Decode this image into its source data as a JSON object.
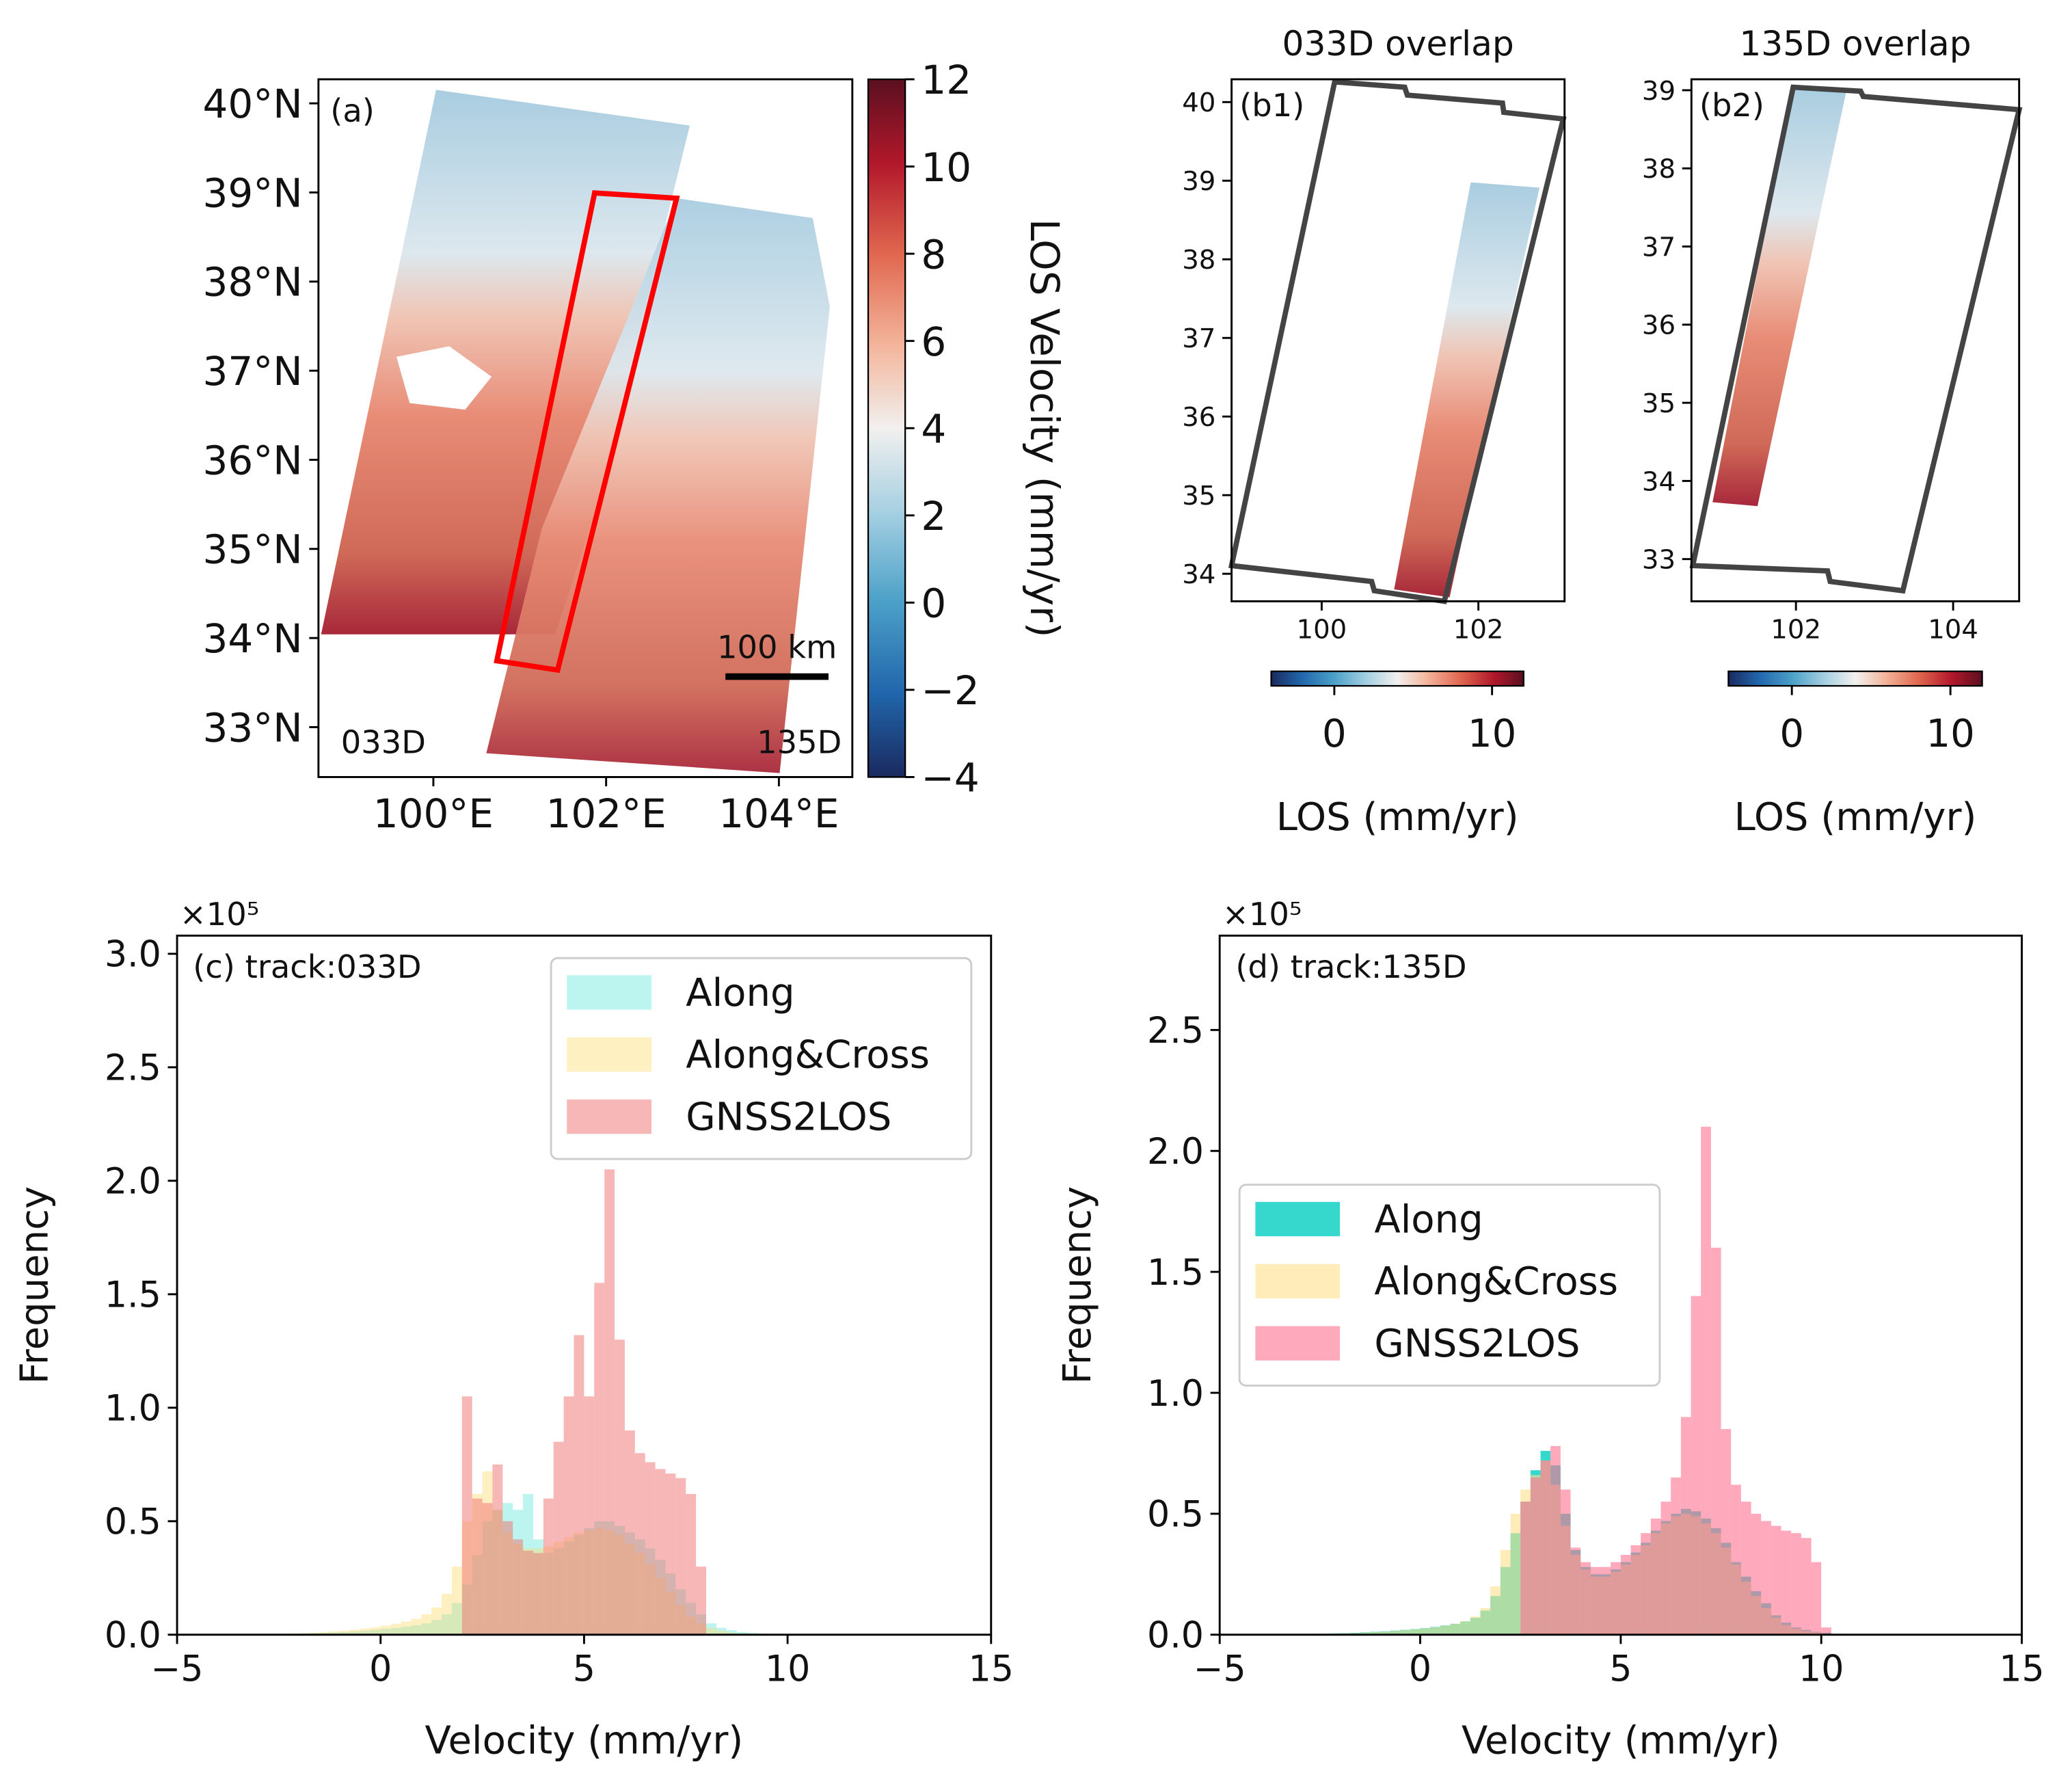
{
  "chart_data": [
    {
      "type": "map",
      "annotations": [
        "(a)",
        "033D",
        "135D",
        "100 km"
      ],
      "xlim": [
        98.67,
        104.85
      ],
      "xticks": [
        {
          "value": 100,
          "label": "100°E"
        },
        {
          "value": 102,
          "label": "102°E"
        },
        {
          "value": 104,
          "label": "104°E"
        }
      ],
      "ylim": [
        32.44,
        40.27
      ],
      "yticks": [
        {
          "value": 33,
          "label": "33°N"
        },
        {
          "value": 34,
          "label": "34°N"
        },
        {
          "value": 35,
          "label": "35°N"
        },
        {
          "value": 36,
          "label": "36°N"
        },
        {
          "value": 37,
          "label": "37°N"
        },
        {
          "value": 38,
          "label": "38°N"
        },
        {
          "value": 39,
          "label": "39°N"
        },
        {
          "value": 40,
          "label": "40°N"
        }
      ],
      "colorbar": {
        "label": "LOS Velocity (mm/yr)",
        "orientation": "vertical",
        "lim": [
          -4,
          12
        ],
        "ticks": [
          {
            "value": -4,
            "label": "−4"
          },
          {
            "value": -2,
            "label": "−2"
          },
          0,
          2,
          4,
          6,
          8,
          10,
          12
        ]
      }
    },
    {
      "type": "map",
      "title": "033D overlap",
      "annotations": [
        "(b1)"
      ],
      "xlim": [
        98.85,
        103.1
      ],
      "xticks": [
        100,
        102
      ],
      "ylim": [
        33.65,
        40.29
      ],
      "yticks": [
        34,
        35,
        36,
        37,
        38,
        39,
        40
      ],
      "colorbar": {
        "label": "LOS (mm/yr)",
        "orientation": "horizontal",
        "lim": [
          -4,
          12
        ],
        "ticks": [
          0,
          10
        ]
      }
    },
    {
      "type": "map",
      "title": "135D overlap",
      "annotations": [
        "(b2)"
      ],
      "xlim": [
        100.67,
        104.84
      ],
      "xticks": [
        102,
        104
      ],
      "ylim": [
        32.46,
        39.14
      ],
      "yticks": [
        33,
        34,
        35,
        36,
        37,
        38,
        39
      ],
      "colorbar": {
        "label": "LOS (mm/yr)",
        "orientation": "horizontal",
        "lim": [
          -4,
          12
        ],
        "ticks": [
          0,
          10
        ]
      }
    },
    {
      "type": "histogram",
      "title": "(c) track:033D",
      "xlabel": "Velocity (mm/yr)",
      "ylabel": "Frequency",
      "y_offset_label": "×10⁵",
      "xlim": [
        -5,
        15
      ],
      "xticks": [
        {
          "value": -5,
          "label": "−5"
        },
        0,
        5,
        10,
        15
      ],
      "ylim": [
        0,
        3.08
      ],
      "yticks": [
        {
          "value": 0,
          "label": "0.0"
        },
        {
          "value": 0.5,
          "label": "0.5"
        },
        {
          "value": 1,
          "label": "1.0"
        },
        {
          "value": 1.5,
          "label": "1.5"
        },
        {
          "value": 2,
          "label": "2.0"
        },
        {
          "value": 2.5,
          "label": "2.5"
        },
        {
          "value": 3,
          "label": "3.0"
        }
      ],
      "legend": "upper right",
      "bins": [
        -3,
        -2.75,
        -2.5,
        -2.25,
        -2,
        -1.75,
        -1.5,
        -1.25,
        -1,
        -0.75,
        -0.5,
        -0.25,
        0,
        0.25,
        0.5,
        0.75,
        1,
        1.25,
        1.5,
        1.75,
        2,
        2.25,
        2.5,
        2.75,
        3,
        3.25,
        3.5,
        3.75,
        4,
        4.25,
        4.5,
        4.75,
        5,
        5.25,
        5.5,
        5.75,
        6,
        6.25,
        6.5,
        6.75,
        7,
        7.25,
        7.5,
        7.75,
        8,
        8.25,
        8.5,
        8.75,
        9,
        9.25,
        9.5,
        9.75,
        10,
        10.25,
        10.5,
        10.75,
        11
      ],
      "series": [
        {
          "name": "Along",
          "color": "#40e0d0",
          "alpha": 0.35,
          "values": [
            0,
            0,
            0.002,
            0.003,
            0.005,
            0.006,
            0.008,
            0.01,
            0.012,
            0.015,
            0.018,
            0.022,
            0.026,
            0.03,
            0.035,
            0.042,
            0.05,
            0.065,
            0.09,
            0.14,
            0.22,
            0.35,
            0.5,
            0.55,
            0.58,
            0.55,
            0.62,
            0.42,
            0.36,
            0.38,
            0.41,
            0.44,
            0.47,
            0.5,
            0.5,
            0.48,
            0.45,
            0.42,
            0.38,
            0.33,
            0.27,
            0.2,
            0.14,
            0.09,
            0.05,
            0.03,
            0.02,
            0.012,
            0.008,
            0.005,
            0.003,
            0.002,
            0.001,
            0,
            0,
            0
          ]
        },
        {
          "name": "Along&Cross",
          "color": "#ffd966",
          "alpha": 0.4,
          "values": [
            0,
            0.002,
            0.003,
            0.005,
            0.007,
            0.009,
            0.012,
            0.015,
            0.018,
            0.022,
            0.027,
            0.033,
            0.04,
            0.048,
            0.058,
            0.07,
            0.09,
            0.12,
            0.18,
            0.3,
            0.5,
            0.62,
            0.72,
            0.55,
            0.45,
            0.4,
            0.38,
            0.38,
            0.39,
            0.41,
            0.43,
            0.45,
            0.46,
            0.47,
            0.46,
            0.44,
            0.4,
            0.36,
            0.31,
            0.25,
            0.19,
            0.13,
            0.08,
            0.05,
            0.03,
            0.018,
            0.01,
            0.006,
            0.003,
            0.002,
            0.001,
            0,
            0,
            0,
            0,
            0
          ]
        },
        {
          "name": "GNSS2LOS",
          "color": "#f07070",
          "alpha": 0.5,
          "values": [
            0,
            0,
            0,
            0,
            0,
            0,
            0,
            0,
            0,
            0,
            0,
            0,
            0,
            0,
            0,
            0,
            0,
            0,
            0,
            0,
            1.05,
            0.6,
            0.58,
            0.75,
            0.5,
            0.42,
            0.37,
            0.36,
            0.6,
            0.85,
            1.05,
            1.32,
            1.05,
            1.55,
            2.05,
            1.3,
            0.9,
            0.8,
            0.76,
            0.73,
            0.71,
            0.69,
            0.62,
            0.3,
            0,
            0,
            0,
            0,
            0,
            0,
            0,
            0,
            0,
            0,
            0,
            0
          ]
        }
      ]
    },
    {
      "type": "histogram",
      "title": "(d) track:135D",
      "xlabel": "Velocity (mm/yr)",
      "ylabel": "Frequency",
      "y_offset_label": "×10⁵",
      "xlim": [
        -5,
        15
      ],
      "xticks": [
        {
          "value": -5,
          "label": "−5"
        },
        0,
        5,
        10,
        15
      ],
      "ylim": [
        0,
        2.89
      ],
      "yticks": [
        {
          "value": 0,
          "label": "0.0"
        },
        {
          "value": 0.5,
          "label": "0.5"
        },
        {
          "value": 1,
          "label": "1.0"
        },
        {
          "value": 1.5,
          "label": "1.5"
        },
        {
          "value": 2,
          "label": "2.0"
        },
        {
          "value": 2.5,
          "label": "2.5"
        }
      ],
      "legend": "center left",
      "bins": [
        -3,
        -2.75,
        -2.5,
        -2.25,
        -2,
        -1.75,
        -1.5,
        -1.25,
        -1,
        -0.75,
        -0.5,
        -0.25,
        0,
        0.25,
        0.5,
        0.75,
        1,
        1.25,
        1.5,
        1.75,
        2,
        2.25,
        2.5,
        2.75,
        3,
        3.25,
        3.5,
        3.75,
        4,
        4.25,
        4.5,
        4.75,
        5,
        5.25,
        5.5,
        5.75,
        6,
        6.25,
        6.5,
        6.75,
        7,
        7.25,
        7.5,
        7.75,
        8,
        8.25,
        8.5,
        8.75,
        9,
        9.25,
        9.5,
        9.75,
        10,
        10.25,
        10.5,
        10.75,
        11
      ],
      "series": [
        {
          "name": "Along",
          "color": "#20d4c8",
          "alpha": 0.9,
          "values": [
            0.002,
            0.003,
            0.004,
            0.005,
            0.006,
            0.008,
            0.01,
            0.012,
            0.014,
            0.017,
            0.02,
            0.023,
            0.027,
            0.032,
            0.038,
            0.045,
            0.055,
            0.07,
            0.1,
            0.16,
            0.28,
            0.42,
            0.55,
            0.68,
            0.76,
            0.7,
            0.5,
            0.35,
            0.28,
            0.25,
            0.25,
            0.27,
            0.3,
            0.34,
            0.38,
            0.43,
            0.47,
            0.5,
            0.52,
            0.51,
            0.48,
            0.44,
            0.38,
            0.3,
            0.24,
            0.18,
            0.13,
            0.08,
            0.05,
            0.03,
            0.02,
            0.012,
            0.008,
            0.004,
            0.002,
            0
          ]
        },
        {
          "name": "Along&Cross",
          "color": "#ffe08a",
          "alpha": 0.6,
          "values": [
            0,
            0.002,
            0.003,
            0.004,
            0.005,
            0.007,
            0.009,
            0.011,
            0.013,
            0.016,
            0.019,
            0.022,
            0.026,
            0.031,
            0.037,
            0.045,
            0.055,
            0.075,
            0.11,
            0.2,
            0.35,
            0.5,
            0.6,
            0.66,
            0.72,
            0.62,
            0.45,
            0.33,
            0.27,
            0.24,
            0.24,
            0.26,
            0.29,
            0.33,
            0.37,
            0.42,
            0.46,
            0.49,
            0.5,
            0.49,
            0.46,
            0.42,
            0.36,
            0.29,
            0.22,
            0.16,
            0.11,
            0.07,
            0.04,
            0.025,
            0.015,
            0.01,
            0.005,
            0.003,
            0.001,
            0
          ]
        },
        {
          "name": "GNSS2LOS",
          "color": "#ff6f91",
          "alpha": 0.6,
          "values": [
            0,
            0,
            0,
            0,
            0,
            0,
            0,
            0,
            0,
            0,
            0,
            0,
            0,
            0,
            0,
            0,
            0,
            0,
            0,
            0,
            0,
            0,
            0.55,
            0.65,
            0.72,
            0.78,
            0.6,
            0.36,
            0.3,
            0.28,
            0.28,
            0.3,
            0.33,
            0.37,
            0.42,
            0.48,
            0.55,
            0.65,
            0.9,
            1.4,
            2.1,
            1.6,
            0.85,
            0.62,
            0.55,
            0.5,
            0.47,
            0.45,
            0.43,
            0.42,
            0.4,
            0.3,
            0.03,
            0,
            0,
            0
          ]
        }
      ]
    }
  ]
}
